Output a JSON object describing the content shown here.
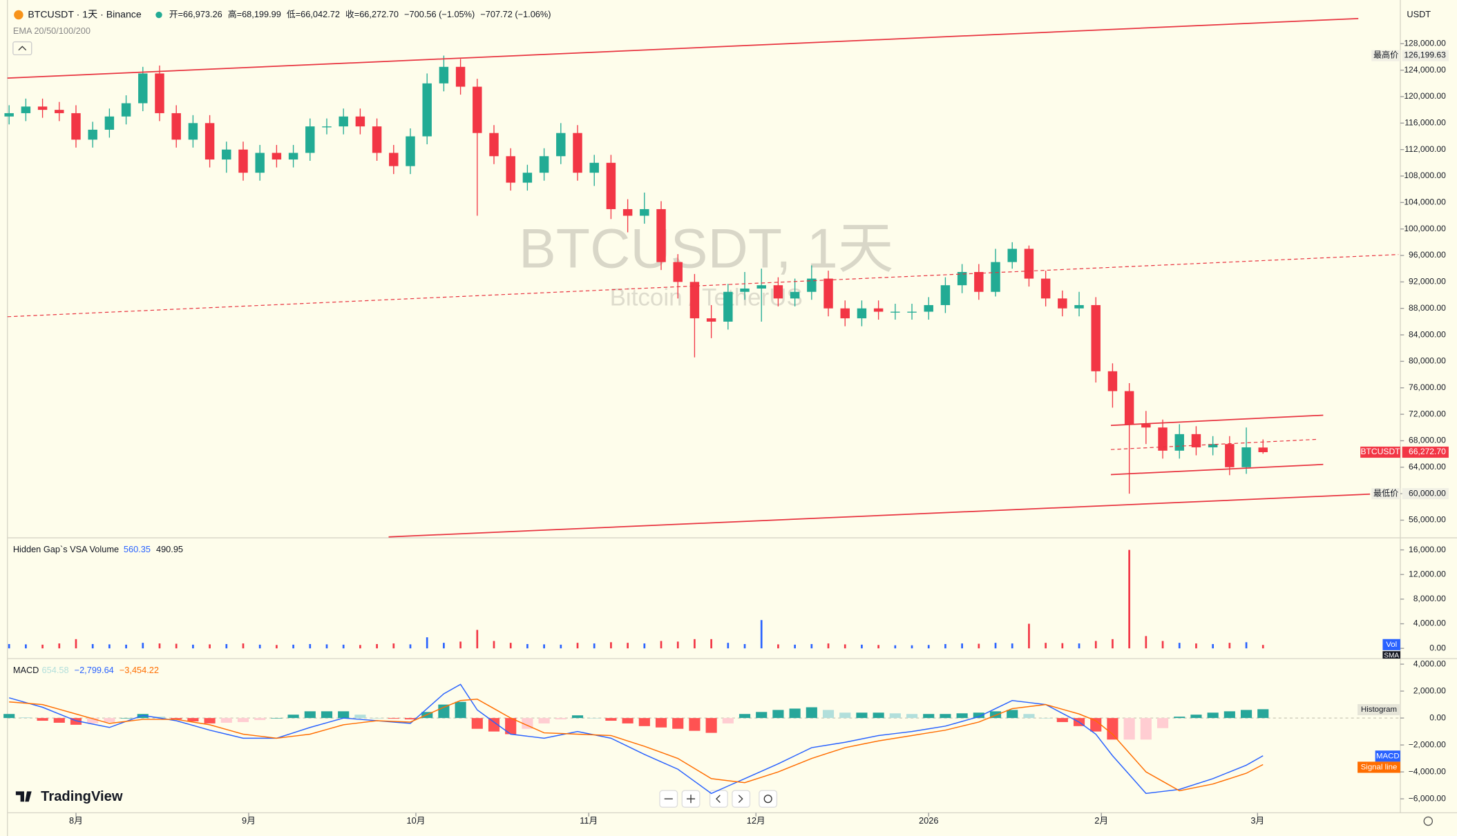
{
  "chart_data": {
    "type": "candlestick",
    "symbol_title": "BTCUSDT · 1天 · Binance",
    "header_values": [
      "开=66,973.26",
      "高=68,199.99",
      "低=66,042.72",
      "收=66,272.70",
      "−700.56 (−1.05%)",
      "−707.72 (−1.06%)"
    ],
    "indicator_label": "EMA 20/50/100/200",
    "watermark": "BTCUSDT, 1天",
    "watermark_sub": "Bitcoin / TetherUS",
    "currency": "USDT",
    "brand": "TradingView",
    "up_color": "#22ab94",
    "down_color": "#f23645",
    "open": [
      117000,
      117500,
      118500,
      118000,
      117500,
      113500,
      115000,
      117000,
      119000,
      123500,
      117500,
      113500,
      116000,
      110500,
      112000,
      108500,
      111500,
      110500,
      111500,
      115500,
      115500,
      117000,
      115500,
      111500,
      109500,
      114000,
      122000,
      124500,
      121500,
      114500,
      111000,
      107000,
      108500,
      111000,
      114500,
      108500,
      110000,
      103000,
      102000,
      103000,
      95000,
      92000,
      86500,
      86000,
      90500,
      91000,
      91500,
      89500,
      90500,
      92500,
      88000,
      86500,
      88000,
      87500,
      87500,
      87500,
      88500,
      91500,
      93500,
      90500,
      95000,
      97000,
      92500,
      89500,
      88000,
      88500,
      78500,
      75500,
      70500,
      70000,
      66500,
      69000,
      67000,
      67500,
      64000,
      66973.26
    ],
    "high": [
      118700,
      119700,
      119700,
      119200,
      118700,
      116200,
      118200,
      120200,
      124500,
      124700,
      118700,
      117200,
      117200,
      113200,
      113200,
      112700,
      112700,
      112700,
      116700,
      116700,
      118200,
      118200,
      116700,
      112700,
      115200,
      123500,
      126199.63,
      125700,
      122700,
      115700,
      112200,
      109700,
      112200,
      116000,
      115700,
      111200,
      111200,
      104500,
      105500,
      104200,
      96200,
      93200,
      88500,
      91700,
      93500,
      94000,
      92700,
      92500,
      94500,
      93700,
      89200,
      89200,
      89200,
      88700,
      88700,
      89700,
      92700,
      94700,
      94700,
      97000,
      98000,
      97500,
      93700,
      90700,
      90500,
      89700,
      79700,
      76700,
      72500,
      71200,
      70500,
      70200,
      68700,
      68700,
      70000,
      68199.99
    ],
    "low": [
      115800,
      116300,
      116800,
      116300,
      112300,
      112300,
      113800,
      115800,
      117800,
      116300,
      112300,
      112300,
      109300,
      108500,
      107300,
      107300,
      109300,
      109300,
      110300,
      114300,
      114300,
      114300,
      110300,
      108300,
      108300,
      112800,
      120800,
      120300,
      102000,
      109800,
      105800,
      105800,
      107300,
      109800,
      107300,
      106500,
      101500,
      99500,
      100800,
      93800,
      89500,
      80600,
      83500,
      84800,
      89300,
      86000,
      88300,
      88300,
      89300,
      86800,
      85300,
      85300,
      86300,
      86300,
      86300,
      86300,
      87300,
      90300,
      89300,
      89800,
      94000,
      91300,
      88300,
      86800,
      86800,
      76800,
      73000,
      60000,
      67500,
      65300,
      65300,
      65800,
      65800,
      62800,
      63000,
      66042.72
    ],
    "close": [
      117500,
      118500,
      118000,
      117500,
      113500,
      115000,
      117000,
      119000,
      123500,
      117500,
      113500,
      116000,
      110500,
      112000,
      108500,
      111500,
      110500,
      111500,
      115500,
      115500,
      117000,
      115500,
      111500,
      109500,
      114000,
      122000,
      124500,
      121500,
      114500,
      111000,
      107000,
      108500,
      111000,
      114500,
      108500,
      110000,
      103000,
      102000,
      103000,
      95000,
      92000,
      86500,
      86000,
      90500,
      91000,
      91500,
      89500,
      90500,
      92500,
      88000,
      86500,
      88000,
      87500,
      87500,
      87500,
      88500,
      91500,
      93500,
      90500,
      95000,
      97000,
      92500,
      89500,
      88000,
      88500,
      78500,
      75500,
      70500,
      70000,
      66500,
      69000,
      67000,
      67500,
      64000,
      67000,
      66272.7
    ],
    "xlim": [
      -0.1,
      83.1
    ],
    "xticks": [
      {
        "value": 4,
        "label": "8月"
      },
      {
        "value": 14.33,
        "label": "9月"
      },
      {
        "value": 24.33,
        "label": "10月"
      },
      {
        "value": 34.67,
        "label": "11月"
      },
      {
        "value": 44.67,
        "label": "12月"
      },
      {
        "value": 55,
        "label": "2026"
      },
      {
        "value": 65.33,
        "label": "2月"
      },
      {
        "value": 74.67,
        "label": "3月"
      }
    ],
    "ylim": [
      53470,
      133900
    ],
    "yticks": [
      {
        "value": 56000,
        "label": "56,000.00"
      },
      {
        "value": 60000,
        "label": "60,000.00"
      },
      {
        "value": 64000,
        "label": "64,000.00"
      },
      {
        "value": 68000,
        "label": "68,000.00"
      },
      {
        "value": 72000,
        "label": "72,000.00"
      },
      {
        "value": 76000,
        "label": "76,000.00"
      },
      {
        "value": 80000,
        "label": "80,000.00"
      },
      {
        "value": 84000,
        "label": "84,000.00"
      },
      {
        "value": 88000,
        "label": "88,000.00"
      },
      {
        "value": 92000,
        "label": "92,000.00"
      },
      {
        "value": 96000,
        "label": "96,000.00"
      },
      {
        "value": 100000,
        "label": "100,000.00"
      },
      {
        "value": 104000,
        "label": "104,000.00"
      },
      {
        "value": 108000,
        "label": "108,000.00"
      },
      {
        "value": 112000,
        "label": "112,000.00"
      },
      {
        "value": 116000,
        "label": "116,000.00"
      },
      {
        "value": 120000,
        "label": "120,000.00"
      },
      {
        "value": 124000,
        "label": "124,000.00"
      },
      {
        "value": 128000,
        "label": "128,000.00"
      }
    ],
    "high_marker": {
      "label": "最高价",
      "price": {
        "value": 126199.63,
        "label": "126,199.63"
      }
    },
    "low_marker": {
      "label": "最低价",
      "price": {
        "value": 60000,
        "label": "60,000.00"
      }
    },
    "last_price": {
      "label": "BTCUSDT",
      "price": {
        "value": 66272.7,
        "label": "66,272.70"
      }
    },
    "trend_lines": [
      {
        "x": [
          -0.1,
          80.7
        ],
        "y": [
          122800,
          131800
        ],
        "color": "#e8333f",
        "dashed": false
      },
      {
        "x": [
          -0.1,
          83.1
        ],
        "y": [
          86740,
          96140
        ],
        "color": "#e8333f",
        "dashed": true
      },
      {
        "x": [
          22.7,
          81.4
        ],
        "y": [
          53470,
          59930
        ],
        "color": "#e8333f",
        "dashed": false
      },
      {
        "x": [
          65.9,
          78.6
        ],
        "y": [
          70320,
          71860
        ],
        "color": "#e8333f",
        "dashed": false
      },
      {
        "x": [
          65.9,
          78.2
        ],
        "y": [
          66670,
          68210
        ],
        "color": "#e8333f",
        "dashed": true
      },
      {
        "x": [
          65.9,
          78.6
        ],
        "y": [
          62880,
          64420
        ],
        "color": "#e8333f",
        "dashed": false
      }
    ],
    "volume": {
      "title": "Hidden Gap`s VSA Volume",
      "readout": [
        560.35,
        490.95
      ],
      "ylim": [
        -1509,
        17509
      ],
      "yticks": [
        {
          "value": 0,
          "label": "0.00"
        },
        {
          "value": 4000,
          "label": "4,000.00"
        },
        {
          "value": 8000,
          "label": "8,000.00"
        },
        {
          "value": 12000,
          "label": "12,000.00"
        },
        {
          "value": 16000,
          "label": "16,000.00"
        }
      ],
      "up_color": "#2962ff",
      "down_color": "#f23645",
      "series": [
        {
          "name": "Vol",
          "color": "#2962ff",
          "values": [
            700,
            650,
            600,
            800,
            1500,
            700,
            650,
            600,
            900,
            800,
            750,
            600,
            650,
            700,
            800,
            600,
            550,
            600,
            700,
            650,
            600,
            550,
            700,
            800,
            650,
            1800,
            900,
            1100,
            3000,
            1200,
            900,
            700,
            650,
            600,
            900,
            800,
            1000,
            900,
            800,
            1200,
            1100,
            1500,
            1500,
            900,
            700,
            4600,
            650,
            600,
            700,
            800,
            650,
            600,
            550,
            500,
            500,
            550,
            700,
            800,
            750,
            900,
            800,
            4000,
            900,
            850,
            800,
            1200,
            1500,
            16000,
            2000,
            1200,
            900,
            800,
            700,
            900,
            1000,
            560.35
          ]
        }
      ],
      "sma_name": "SMA"
    },
    "macd": {
      "title": "MACD",
      "readout": [
        654.58,
        {
          "value": -2799.64,
          "label": "−2,799.64"
        },
        {
          "value": -3454.22,
          "label": "−3,454.22"
        }
      ],
      "ylim": [
        -6897,
        4207
      ],
      "yticks": [
        {
          "value": 4000,
          "label": "4,000.00"
        },
        {
          "value": 2000,
          "label": "2,000.00"
        },
        {
          "value": 0,
          "label": "0.00"
        },
        {
          "value": -2000,
          "label": "−2,000.00"
        },
        {
          "value": -4000,
          "label": "−4,000.00"
        },
        {
          "value": -6000,
          "label": "−6,000.00"
        }
      ],
      "histogram": {
        "name": "Histogram",
        "colors": {
          "rising_above": "#26a69a",
          "falling_above": "#b2dfdb",
          "rising_below": "#ffcdd2",
          "falling_below": "#ff5252"
        },
        "values": [
          300,
          50,
          -200,
          -350,
          -500,
          -400,
          -300,
          0,
          300,
          100,
          -100,
          -250,
          -400,
          -350,
          -300,
          -150,
          0,
          250,
          500,
          500,
          500,
          250,
          0,
          -50,
          -100,
          450,
          1000,
          1200,
          -800,
          -1000,
          -1200,
          -800,
          -400,
          -100,
          200,
          0,
          -200,
          -400,
          -600,
          -700,
          -800,
          -950,
          -1100,
          -400,
          300,
          450,
          600,
          700,
          800,
          600,
          400,
          400,
          400,
          350,
          300,
          300,
          300,
          350,
          400,
          500,
          600,
          300,
          0,
          -300,
          -600,
          -1000,
          -1600,
          -1600,
          -1600,
          -750,
          100,
          250,
          400,
          500,
          600,
          654.58
        ]
      },
      "series": [
        {
          "name": "MACD",
          "color": "#2962ff",
          "values": [
            1500,
            1150,
            800,
            300,
            -200,
            -450,
            -700,
            -250,
            200,
            0,
            -200,
            -550,
            -900,
            -1200,
            -1500,
            -1500,
            -1500,
            -1100,
            -700,
            -350,
            0,
            -100,
            -200,
            -300,
            -400,
            700,
            1800,
            2500,
            600,
            -300,
            -1200,
            -1350,
            -1500,
            -1250,
            -1000,
            -1250,
            -1500,
            -2100,
            -2700,
            -3250,
            -3800,
            -4700,
            -5600,
            -5050,
            -4500,
            -3950,
            -3400,
            -2800,
            -2200,
            -2000,
            -1800,
            -1550,
            -1300,
            -1150,
            -1000,
            -800,
            -600,
            -250,
            100,
            700,
            1300,
            1150,
            1000,
            350,
            -300,
            -1200,
            -2800,
            -4200,
            -5600,
            -5450,
            -5300,
            -4900,
            -4500,
            -4000,
            -3500,
            -2799.64
          ]
        },
        {
          "name": "Signal line",
          "color": "#ff6d00",
          "values": [
            1200,
            1100,
            1000,
            650,
            300,
            -50,
            -400,
            -250,
            -100,
            -100,
            -100,
            -300,
            -500,
            -850,
            -1200,
            -1350,
            -1500,
            -1350,
            -1200,
            -850,
            -500,
            -350,
            -200,
            -250,
            -300,
            250,
            800,
            1300,
            1400,
            700,
            0,
            -550,
            -1100,
            -1150,
            -1200,
            -1250,
            -1300,
            -1700,
            -2100,
            -2550,
            -3000,
            -3750,
            -4500,
            -4650,
            -4800,
            -4400,
            -4000,
            -3500,
            -3000,
            -2600,
            -2200,
            -1950,
            -1700,
            -1500,
            -1300,
            -1100,
            -900,
            -600,
            -300,
            200,
            700,
            850,
            1000,
            650,
            300,
            -200,
            -1200,
            -2600,
            -4000,
            -4700,
            -5400,
            -5150,
            -4900,
            -4500,
            -4100,
            -3454.22
          ]
        }
      ]
    }
  }
}
